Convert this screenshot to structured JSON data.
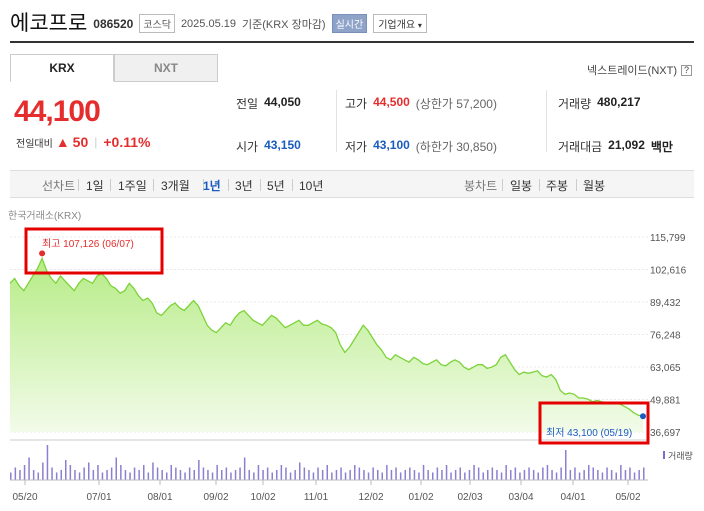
{
  "header": {
    "name": "에코프로",
    "code": "086520",
    "market": "코스닥",
    "date": "2025.05.19",
    "basis": "기준(KRX 장마감)",
    "realtime": "실시간",
    "company_info": "기업개요"
  },
  "tabs": {
    "krx": "KRX",
    "nxt": "NXT"
  },
  "nxt_link": "넥스트레이드(NXT)",
  "help_icon": "?",
  "quote": {
    "price": "44,100",
    "change_label": "전일대비",
    "change": "50",
    "change_pct": "+0.11%",
    "arrow": "▲"
  },
  "stats": {
    "prev_label": "전일",
    "prev": "44,050",
    "high_label": "고가",
    "high": "44,500",
    "high_sub": "(상한가 57,200)",
    "vol_label": "거래량",
    "vol": "480,217",
    "open_label": "시가",
    "open": "43,150",
    "low_label": "저가",
    "low": "43,100",
    "low_sub": "(하한가 30,850)",
    "amt_label": "거래대금",
    "amt": "21,092",
    "amt_unit": "백만"
  },
  "period": {
    "line_chart": "선차트",
    "ranges": [
      "1일",
      "1주일",
      "3개월",
      "1년",
      "3년",
      "5년",
      "10년"
    ],
    "selected": "1년",
    "candle": "봉차트",
    "candle_ranges": [
      "일봉",
      "주봉",
      "월봉"
    ]
  },
  "chart_data": {
    "type": "area",
    "source_label": "한국거래소(KRX)",
    "y_ticks": [
      "115,799",
      "102,616",
      "89,432",
      "76,248",
      "63,065",
      "49,881",
      "36,697"
    ],
    "ylim": [
      36697,
      115799
    ],
    "x_ticks": [
      "05/20",
      "07/01",
      "08/01",
      "09/02",
      "10/02",
      "11/01",
      "12/02",
      "01/02",
      "02/03",
      "03/04",
      "04/01",
      "05/02"
    ],
    "high_label": "최고 107,126 (06/07)",
    "low_label": "최저 43,100 (05/19)",
    "volume_label": "거래량",
    "values": [
      97000,
      99000,
      96000,
      94000,
      97000,
      100000,
      103000,
      107126,
      102000,
      99000,
      97000,
      100000,
      98000,
      96000,
      94000,
      97000,
      99000,
      98000,
      97000,
      100000,
      101000,
      99000,
      96000,
      95000,
      93000,
      94000,
      97000,
      95000,
      92000,
      90000,
      91000,
      89000,
      85000,
      84000,
      86000,
      88000,
      89000,
      87000,
      86000,
      88000,
      90000,
      88000,
      84000,
      80000,
      78000,
      77000,
      79000,
      81000,
      80000,
      83000,
      85000,
      86000,
      84000,
      82000,
      81000,
      80000,
      82000,
      84000,
      83000,
      81000,
      79000,
      80000,
      81000,
      82000,
      80000,
      80000,
      81000,
      82000,
      80500,
      80000,
      79000,
      77000,
      72000,
      69000,
      71000,
      74000,
      77000,
      80000,
      78000,
      75000,
      72000,
      70000,
      67000,
      66000,
      68000,
      67000,
      66000,
      65000,
      67000,
      66000,
      64500,
      64000,
      65000,
      66000,
      64000,
      63500,
      65000,
      66000,
      65000,
      63000,
      62000,
      63000,
      64000,
      64000,
      62500,
      63000,
      64000,
      67000,
      68000,
      65000,
      62000,
      60000,
      61000,
      60500,
      61000,
      61500,
      59500,
      59000,
      60000,
      58000,
      53500,
      52000,
      52500,
      52000,
      50500,
      50500,
      50000,
      49000,
      49500,
      49000,
      48500,
      48000,
      48500,
      48000,
      47000,
      46000,
      44500,
      43500,
      43100
    ],
    "volumes": [
      3,
      5,
      4,
      6,
      9,
      4,
      3,
      7,
      14,
      5,
      3,
      4,
      8,
      6,
      4,
      3,
      5,
      7,
      4,
      6,
      3,
      4,
      5,
      9,
      6,
      4,
      3,
      5,
      4,
      6,
      3,
      7,
      5,
      4,
      3,
      6,
      5,
      4,
      3,
      5,
      4,
      8,
      5,
      4,
      3,
      6,
      4,
      5,
      3,
      4,
      5,
      9,
      4,
      3,
      6,
      4,
      5,
      3,
      4,
      6,
      5,
      3,
      4,
      7,
      5,
      4,
      3,
      5,
      4,
      6,
      3,
      4,
      5,
      3,
      4,
      6,
      5,
      4,
      3,
      5,
      4,
      3,
      6,
      4,
      5,
      3,
      4,
      5,
      4,
      3,
      6,
      4,
      3,
      5,
      4,
      6,
      3,
      4,
      5,
      3,
      4,
      6,
      5,
      3,
      4,
      5,
      4,
      3,
      6,
      4,
      5,
      3,
      4,
      5,
      4,
      3,
      5,
      6,
      4,
      3,
      5,
      12,
      4,
      5,
      3,
      4,
      6,
      5,
      4,
      3,
      5,
      4,
      3,
      6,
      4,
      5,
      3,
      4,
      5
    ]
  }
}
